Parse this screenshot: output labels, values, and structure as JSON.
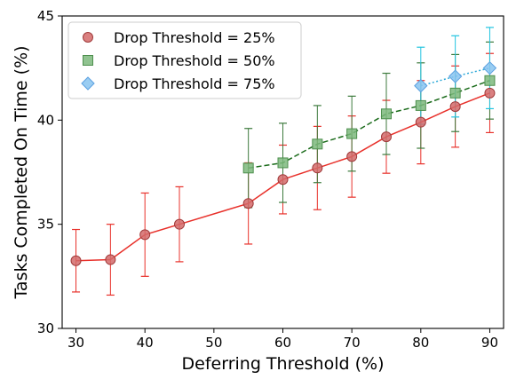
{
  "chart_data": {
    "type": "line",
    "xlabel": "Deferring Threshold (%)",
    "ylabel": "Tasks Completed On Time (%)",
    "xlim": [
      28,
      92
    ],
    "ylim": [
      30,
      45
    ],
    "xticks": [
      30,
      40,
      50,
      60,
      70,
      80,
      90
    ],
    "yticks": [
      30,
      35,
      40,
      45
    ],
    "grid": false,
    "legend_position": "top-left",
    "series": [
      {
        "name": "Drop Threshold = 25%",
        "marker": "circle",
        "line_style": "solid",
        "line_color": "#e8302a",
        "marker_fill": "#d36a6a",
        "marker_edge": "#a03a3a",
        "error_color": "#e8302a",
        "x": [
          30,
          35,
          40,
          45,
          55,
          60,
          65,
          70,
          75,
          80,
          85,
          90
        ],
        "y": [
          33.25,
          33.3,
          34.5,
          35.0,
          36.0,
          37.15,
          37.7,
          38.25,
          39.2,
          39.9,
          40.65,
          41.3
        ],
        "err": [
          1.5,
          1.7,
          2.0,
          1.8,
          1.95,
          1.65,
          2.0,
          1.95,
          1.75,
          2.0,
          1.95,
          1.9
        ]
      },
      {
        "name": "Drop Threshold = 50%",
        "marker": "square",
        "line_style": "dashed",
        "line_color": "#1a6b1a",
        "marker_fill": "#7cb87c",
        "marker_edge": "#4d8f4d",
        "error_color": "#3c7a3c",
        "x": [
          55,
          60,
          65,
          70,
          75,
          80,
          85,
          90
        ],
        "y": [
          37.7,
          37.95,
          38.85,
          39.35,
          40.3,
          40.7,
          41.3,
          41.9
        ],
        "err": [
          1.9,
          1.9,
          1.85,
          1.8,
          1.95,
          2.05,
          1.85,
          1.85
        ]
      },
      {
        "name": "Drop Threshold = 75%",
        "marker": "diamond",
        "line_style": "dotted",
        "line_color": "#2aa8d8",
        "marker_fill": "#88c4f0",
        "marker_edge": "#5aa0e0",
        "error_color": "#22c4e0",
        "x": [
          80,
          85,
          90
        ],
        "y": [
          41.65,
          42.1,
          42.5
        ],
        "err": [
          1.85,
          1.95,
          1.95
        ]
      }
    ]
  }
}
